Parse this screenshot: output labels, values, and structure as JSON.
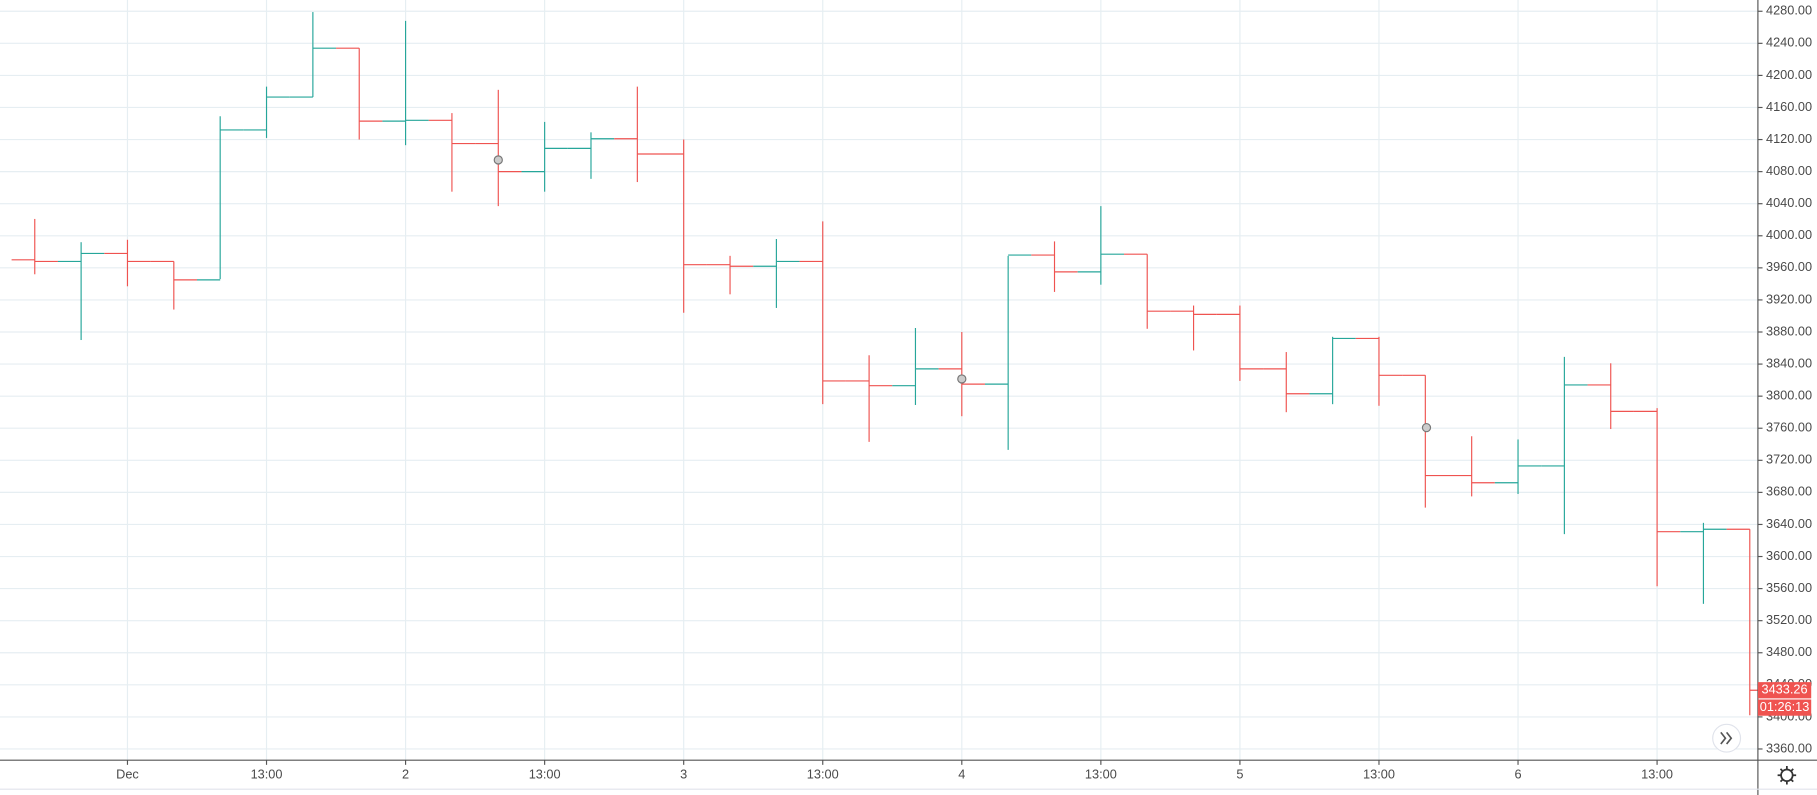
{
  "chart_data": {
    "type": "ohlc",
    "categories": [
      null,
      null,
      "Dec",
      null,
      null,
      "13:00",
      null,
      null,
      "2",
      null,
      null,
      "13:00",
      null,
      null,
      "3",
      null,
      null,
      "13:00",
      null,
      null,
      "4",
      null,
      null,
      "13:00",
      null,
      null,
      "5",
      null,
      null,
      "13:00",
      null,
      null,
      "6",
      null,
      null,
      "13:00",
      null,
      null
    ],
    "open": [
      3970,
      3968,
      3978,
      3968,
      3945,
      4132,
      4173,
      4234,
      4143,
      4144,
      4115,
      4080,
      4109,
      4121,
      4102,
      3964,
      3962,
      3968,
      3819,
      3813,
      3834,
      3815,
      3976,
      3955,
      3977,
      3906,
      3902,
      3834,
      3803,
      3872,
      3826,
      3701,
      3692,
      3713,
      3814,
      3781,
      3631,
      3634
    ],
    "high": [
      4021,
      3992,
      3995,
      3968,
      4149,
      4186,
      4279,
      4234,
      4268,
      4153,
      4182,
      4142,
      4129,
      4186,
      4120,
      3975,
      3996,
      4018,
      3851,
      3885,
      3880,
      3975,
      3993,
      4037,
      3977,
      3913,
      3913,
      3855,
      3874,
      3874,
      3826,
      3750,
      3746,
      3849,
      3841,
      3785,
      3642,
      3634
    ],
    "low": [
      3952,
      3870,
      3937,
      3908,
      3946,
      4122,
      4173,
      4120,
      4113,
      4055,
      4037,
      4055,
      4071,
      4067,
      3904,
      3927,
      3910,
      3790,
      3743,
      3789,
      3775,
      3733,
      3930,
      3939,
      3884,
      3857,
      3819,
      3780,
      3790,
      3788,
      3661,
      3675,
      3678,
      3628,
      3759,
      3563,
      3541,
      3402
    ],
    "close": [
      3968,
      3978,
      3968,
      3945,
      4132,
      4173,
      4234,
      4143,
      4144,
      4115,
      4080,
      4109,
      4121,
      4102,
      3964,
      3962,
      3968,
      3819,
      3813,
      3834,
      3815,
      3976,
      3955,
      3977,
      3906,
      3902,
      3834,
      3803,
      3872,
      3826,
      3701,
      3692,
      3713,
      3814,
      3781,
      3631,
      3634,
      3433.26
    ],
    "up_color": "#26a69a",
    "down_color": "#ef5350",
    "ylim": [
      3346,
      4294
    ],
    "yticks": [
      {
        "value": 3360,
        "label": "3360.00"
      },
      {
        "value": 3400,
        "label": "3400.00"
      },
      {
        "value": 3440,
        "label": "3440.00"
      },
      {
        "value": 3480,
        "label": "3480.00"
      },
      {
        "value": 3520,
        "label": "3520.00"
      },
      {
        "value": 3560,
        "label": "3560.00"
      },
      {
        "value": 3600,
        "label": "3600.00"
      },
      {
        "value": 3640,
        "label": "3640.00"
      },
      {
        "value": 3680,
        "label": "3680.00"
      },
      {
        "value": 3720,
        "label": "3720.00"
      },
      {
        "value": 3760,
        "label": "3760.00"
      },
      {
        "value": 3800,
        "label": "3800.00"
      },
      {
        "value": 3840,
        "label": "3840.00"
      },
      {
        "value": 3880,
        "label": "3880.00"
      },
      {
        "value": 3920,
        "label": "3920.00"
      },
      {
        "value": 3960,
        "label": "3960.00"
      },
      {
        "value": 4000,
        "label": "4000.00"
      },
      {
        "value": 4040,
        "label": "4040.00"
      },
      {
        "value": 4080,
        "label": "4080.00"
      },
      {
        "value": 4120,
        "label": "4120.00"
      },
      {
        "value": 4160,
        "label": "4160.00"
      },
      {
        "value": 4200,
        "label": "4200.00"
      },
      {
        "value": 4240,
        "label": "4240.00"
      },
      {
        "value": 4280,
        "label": "4280.00"
      }
    ],
    "grid": true,
    "countdown": "01:26:13"
  }
}
